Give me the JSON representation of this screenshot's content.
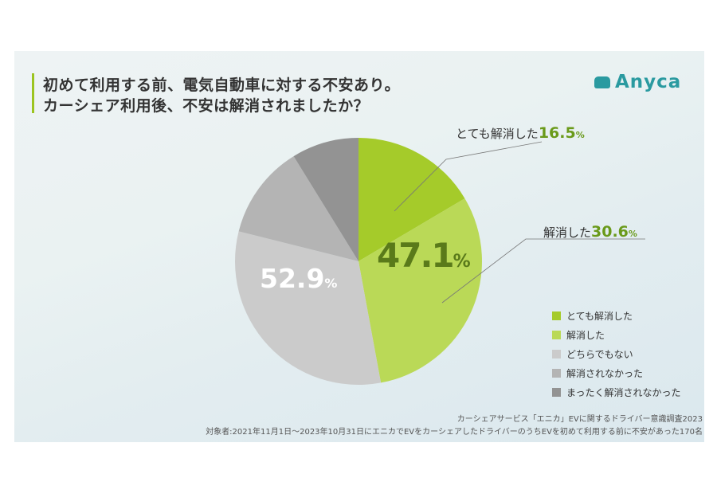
{
  "title_lines": [
    "初めて利用する前、電気自動車に対する不安あり。",
    "カーシェア利用後、不安は解消されましたか？"
  ],
  "logo": "Anyca",
  "chart_data": {
    "type": "pie",
    "categories": [
      "とても解消した",
      "解消した",
      "どちらでもない",
      "解消されなかった",
      "まったく解消されなかった"
    ],
    "values": [
      16.5,
      30.6,
      31.8,
      12.3,
      8.8
    ],
    "colors": [
      "#a5cb2a",
      "#bad957",
      "#cbcbcb",
      "#b4b4b4",
      "#939393"
    ],
    "data_labels": [
      {
        "text": "とても解消した",
        "value": "16.5",
        "unit": "%"
      },
      {
        "text": "解消した",
        "value": "30.6",
        "unit": "%"
      }
    ],
    "group_labels": [
      {
        "value": "47.1",
        "unit": "%"
      },
      {
        "value": "52.9",
        "unit": "%"
      }
    ],
    "legend_position": "right"
  },
  "footnotes": [
    "カーシェアサービス「エニカ」EVに関するドライバー意識調査2023",
    "対象者:2021年11月1日〜2023年10月31日にエニカでEVをカーシェアしたドライバーのうちEVを初めて利用する前に不安があった170名"
  ]
}
